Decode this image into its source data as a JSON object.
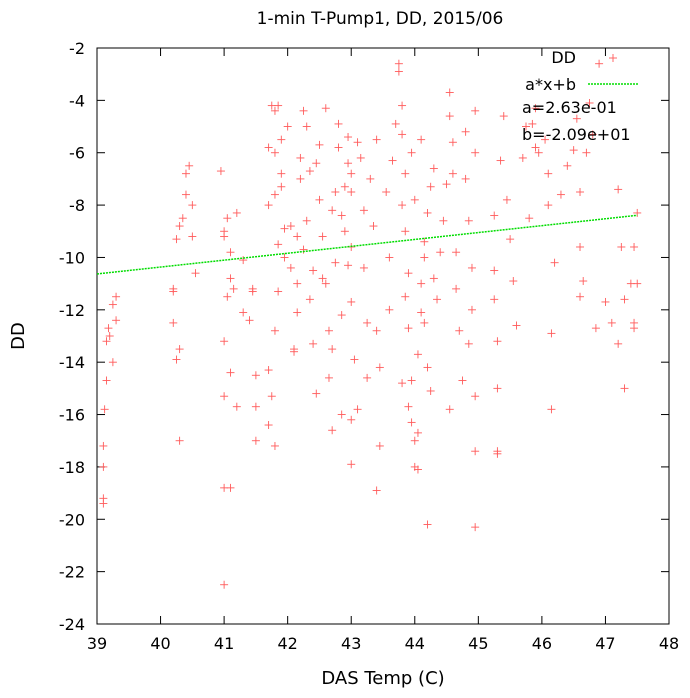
{
  "chart_data": {
    "type": "scatter",
    "title": "1-min T-Pump1, DD, 2015/06",
    "xlabel": "DAS Temp (C)",
    "ylabel": "DD",
    "xlim": [
      39,
      48
    ],
    "ylim": [
      -24,
      -2
    ],
    "xticks": [
      "39",
      "40",
      "41",
      "42",
      "43",
      "44",
      "45",
      "46",
      "47",
      "48"
    ],
    "yticks": [
      "-24",
      "-22",
      "-20",
      "-18",
      "-16",
      "-14",
      "-12",
      "-10",
      "-8",
      "-6",
      "-4",
      "-2"
    ],
    "grid": false,
    "legend_position": "top-right",
    "series": [
      {
        "name": "DD",
        "kind": "points",
        "marker": "plus",
        "color": "#ff5a5a",
        "points": [
          [
            39.1,
            -19.2
          ],
          [
            39.1,
            -19.4
          ],
          [
            39.1,
            -18.0
          ],
          [
            39.1,
            -17.2
          ],
          [
            39.12,
            -15.8
          ],
          [
            39.15,
            -14.7
          ],
          [
            39.15,
            -13.2
          ],
          [
            39.18,
            -12.7
          ],
          [
            39.2,
            -13.0
          ],
          [
            39.25,
            -11.8
          ],
          [
            39.3,
            -11.5
          ],
          [
            39.3,
            -12.4
          ],
          [
            39.25,
            -14.0
          ],
          [
            40.2,
            -12.5
          ],
          [
            40.2,
            -11.2
          ],
          [
            40.25,
            -9.3
          ],
          [
            40.3,
            -8.8
          ],
          [
            40.35,
            -8.5
          ],
          [
            40.4,
            -6.8
          ],
          [
            40.45,
            -6.5
          ],
          [
            40.4,
            -7.6
          ],
          [
            40.5,
            -8.0
          ],
          [
            40.5,
            -9.2
          ],
          [
            40.55,
            -10.6
          ],
          [
            40.3,
            -13.5
          ],
          [
            40.25,
            -13.9
          ],
          [
            40.3,
            -17.0
          ],
          [
            40.2,
            -11.3
          ],
          [
            40.95,
            -6.7
          ],
          [
            41.0,
            -9.0
          ],
          [
            41.0,
            -9.2
          ],
          [
            41.05,
            -8.5
          ],
          [
            41.1,
            -9.8
          ],
          [
            41.15,
            -11.2
          ],
          [
            41.2,
            -8.3
          ],
          [
            41.0,
            -13.2
          ],
          [
            41.0,
            -15.3
          ],
          [
            41.0,
            -18.8
          ],
          [
            41.1,
            -18.8
          ],
          [
            41.0,
            -22.5
          ],
          [
            41.1,
            -14.4
          ],
          [
            41.2,
            -15.7
          ],
          [
            41.05,
            -11.5
          ],
          [
            41.1,
            -10.8
          ],
          [
            41.3,
            -12.1
          ],
          [
            41.3,
            -10.1
          ],
          [
            41.4,
            -12.4
          ],
          [
            41.45,
            -11.3
          ],
          [
            41.5,
            -14.5
          ],
          [
            41.5,
            -15.7
          ],
          [
            41.5,
            -17.0
          ],
          [
            41.45,
            -11.2
          ],
          [
            41.7,
            -5.8
          ],
          [
            41.75,
            -4.2
          ],
          [
            41.8,
            -4.4
          ],
          [
            41.8,
            -6.0
          ],
          [
            41.8,
            -7.6
          ],
          [
            41.85,
            -4.2
          ],
          [
            41.9,
            -5.5
          ],
          [
            41.9,
            -6.8
          ],
          [
            41.95,
            -8.9
          ],
          [
            41.95,
            -10.0
          ],
          [
            41.85,
            -11.3
          ],
          [
            41.8,
            -12.8
          ],
          [
            41.7,
            -14.3
          ],
          [
            41.75,
            -15.3
          ],
          [
            41.7,
            -16.4
          ],
          [
            41.8,
            -17.2
          ],
          [
            41.85,
            -9.5
          ],
          [
            41.7,
            -8.0
          ],
          [
            41.9,
            -7.3
          ],
          [
            42.0,
            -5.0
          ],
          [
            42.05,
            -10.4
          ],
          [
            42.1,
            -13.5
          ],
          [
            42.1,
            -13.6
          ],
          [
            42.15,
            -12.1
          ],
          [
            42.15,
            -9.2
          ],
          [
            42.2,
            -7.0
          ],
          [
            42.2,
            -6.2
          ],
          [
            42.25,
            -4.4
          ],
          [
            42.3,
            -5.0
          ],
          [
            42.3,
            -8.6
          ],
          [
            42.35,
            -11.6
          ],
          [
            42.4,
            -13.3
          ],
          [
            42.4,
            -10.5
          ],
          [
            42.45,
            -6.4
          ],
          [
            42.5,
            -5.7
          ],
          [
            42.5,
            -7.8
          ],
          [
            42.55,
            -9.2
          ],
          [
            42.6,
            -4.3
          ],
          [
            42.6,
            -11.0
          ],
          [
            42.65,
            -12.8
          ],
          [
            42.65,
            -14.6
          ],
          [
            42.7,
            -16.6
          ],
          [
            42.7,
            -13.5
          ],
          [
            42.75,
            -10.2
          ],
          [
            42.75,
            -7.5
          ],
          [
            42.8,
            -5.8
          ],
          [
            42.8,
            -4.9
          ],
          [
            42.85,
            -8.4
          ],
          [
            42.85,
            -12.2
          ],
          [
            42.9,
            -9.0
          ],
          [
            42.9,
            -7.3
          ],
          [
            42.95,
            -6.4
          ],
          [
            42.95,
            -5.4
          ],
          [
            43.0,
            -6.8
          ],
          [
            43.0,
            -7.5
          ],
          [
            43.0,
            -9.6
          ],
          [
            43.0,
            -11.7
          ],
          [
            43.05,
            -13.9
          ],
          [
            43.0,
            -16.2
          ],
          [
            43.0,
            -17.9
          ],
          [
            43.1,
            -15.8
          ],
          [
            43.1,
            -5.6
          ],
          [
            43.15,
            -6.2
          ],
          [
            43.2,
            -8.2
          ],
          [
            43.2,
            -10.4
          ],
          [
            43.25,
            -12.5
          ],
          [
            43.25,
            -14.6
          ],
          [
            43.3,
            -7.0
          ],
          [
            43.35,
            -8.8
          ],
          [
            43.4,
            -5.5
          ],
          [
            43.4,
            -12.8
          ],
          [
            43.4,
            -18.9
          ],
          [
            43.45,
            -14.2
          ],
          [
            43.45,
            -17.2
          ],
          [
            42.45,
            -15.2
          ],
          [
            42.55,
            -10.8
          ],
          [
            42.95,
            -10.3
          ],
          [
            42.7,
            -8.2
          ],
          [
            42.35,
            -6.7
          ],
          [
            42.25,
            -9.7
          ],
          [
            42.15,
            -11.0
          ],
          [
            42.85,
            -16.0
          ],
          [
            42.05,
            -8.8
          ],
          [
            43.55,
            -7.5
          ],
          [
            43.6,
            -10.0
          ],
          [
            43.6,
            -12.0
          ],
          [
            43.65,
            -6.3
          ],
          [
            43.7,
            -4.9
          ],
          [
            43.75,
            -2.6
          ],
          [
            43.75,
            -2.9
          ],
          [
            43.8,
            -4.2
          ],
          [
            43.8,
            -5.3
          ],
          [
            43.85,
            -6.8
          ],
          [
            43.8,
            -8.0
          ],
          [
            43.85,
            -9.0
          ],
          [
            43.9,
            -10.6
          ],
          [
            43.85,
            -11.5
          ],
          [
            43.9,
            -12.7
          ],
          [
            43.8,
            -14.8
          ],
          [
            43.9,
            -15.7
          ],
          [
            43.95,
            -16.3
          ],
          [
            44.0,
            -17.0
          ],
          [
            44.0,
            -18.0
          ],
          [
            44.05,
            -16.7
          ],
          [
            44.05,
            -13.7
          ],
          [
            44.1,
            -12.1
          ],
          [
            44.1,
            -11.0
          ],
          [
            44.15,
            -10.0
          ],
          [
            44.15,
            -9.4
          ],
          [
            44.2,
            -8.3
          ],
          [
            44.25,
            -7.3
          ],
          [
            44.3,
            -6.6
          ],
          [
            44.2,
            -14.2
          ],
          [
            44.25,
            -15.1
          ],
          [
            44.2,
            -20.2
          ],
          [
            44.05,
            -18.1
          ],
          [
            43.95,
            -14.7
          ],
          [
            44.15,
            -12.5
          ],
          [
            44.0,
            -7.8
          ],
          [
            43.95,
            -6.0
          ],
          [
            44.1,
            -5.5
          ],
          [
            44.3,
            -10.8
          ],
          [
            44.35,
            -11.6
          ],
          [
            44.4,
            -9.8
          ],
          [
            44.45,
            -8.6
          ],
          [
            44.5,
            -7.2
          ],
          [
            44.55,
            -3.7
          ],
          [
            44.55,
            -4.6
          ],
          [
            44.6,
            -5.6
          ],
          [
            44.6,
            -6.8
          ],
          [
            44.65,
            -11.2
          ],
          [
            44.7,
            -12.8
          ],
          [
            44.75,
            -14.7
          ],
          [
            44.8,
            -5.2
          ],
          [
            44.8,
            -7.0
          ],
          [
            44.85,
            -8.6
          ],
          [
            44.9,
            -10.4
          ],
          [
            44.9,
            -12.0
          ],
          [
            44.95,
            -15.3
          ],
          [
            44.95,
            -17.4
          ],
          [
            44.95,
            -20.3
          ],
          [
            44.95,
            -4.4
          ],
          [
            44.95,
            -6.0
          ],
          [
            44.55,
            -15.8
          ],
          [
            44.65,
            -9.8
          ],
          [
            44.85,
            -13.3
          ],
          [
            45.25,
            -8.4
          ],
          [
            45.25,
            -10.5
          ],
          [
            45.25,
            -11.6
          ],
          [
            45.3,
            -13.2
          ],
          [
            45.3,
            -15.0
          ],
          [
            45.3,
            -17.5
          ],
          [
            45.3,
            -17.4
          ],
          [
            45.35,
            -6.3
          ],
          [
            45.4,
            -4.6
          ],
          [
            45.45,
            -7.8
          ],
          [
            45.5,
            -9.3
          ],
          [
            45.55,
            -10.9
          ],
          [
            45.6,
            -12.6
          ],
          [
            45.7,
            -6.2
          ],
          [
            45.75,
            -5.0
          ],
          [
            45.8,
            -8.5
          ],
          [
            45.85,
            -4.9
          ],
          [
            45.9,
            -5.8
          ],
          [
            45.9,
            -4.3
          ],
          [
            45.95,
            -6.0
          ],
          [
            46.05,
            -5.5
          ],
          [
            46.1,
            -6.8
          ],
          [
            46.1,
            -8.0
          ],
          [
            46.15,
            -15.8
          ],
          [
            46.15,
            -12.9
          ],
          [
            46.2,
            -10.2
          ],
          [
            46.3,
            -7.6
          ],
          [
            46.4,
            -6.5
          ],
          [
            46.5,
            -5.9
          ],
          [
            46.55,
            -4.7
          ],
          [
            46.6,
            -7.5
          ],
          [
            46.6,
            -9.6
          ],
          [
            46.6,
            -11.5
          ],
          [
            46.65,
            -10.9
          ],
          [
            46.7,
            -6.0
          ],
          [
            46.75,
            -4.1
          ],
          [
            46.8,
            -5.3
          ],
          [
            46.9,
            -2.6
          ],
          [
            46.85,
            -12.7
          ],
          [
            47.0,
            -11.7
          ],
          [
            47.1,
            -12.5
          ],
          [
            47.2,
            -13.3
          ],
          [
            47.2,
            -7.4
          ],
          [
            47.25,
            -9.6
          ],
          [
            47.3,
            -15.0
          ],
          [
            47.3,
            -11.6
          ],
          [
            47.4,
            -11.0
          ],
          [
            47.45,
            -12.5
          ],
          [
            47.45,
            -9.6
          ],
          [
            47.5,
            -8.3
          ],
          [
            47.5,
            -11.0
          ],
          [
            47.45,
            -12.7
          ]
        ]
      },
      {
        "name": "a*x+b",
        "kind": "line",
        "color": "#00dd00",
        "x": [
          39,
          47.5
        ],
        "y": [
          -10.63,
          -8.39
        ]
      }
    ],
    "annotations": [
      "a=2.63e-01",
      "b=-2.09e+01"
    ]
  }
}
